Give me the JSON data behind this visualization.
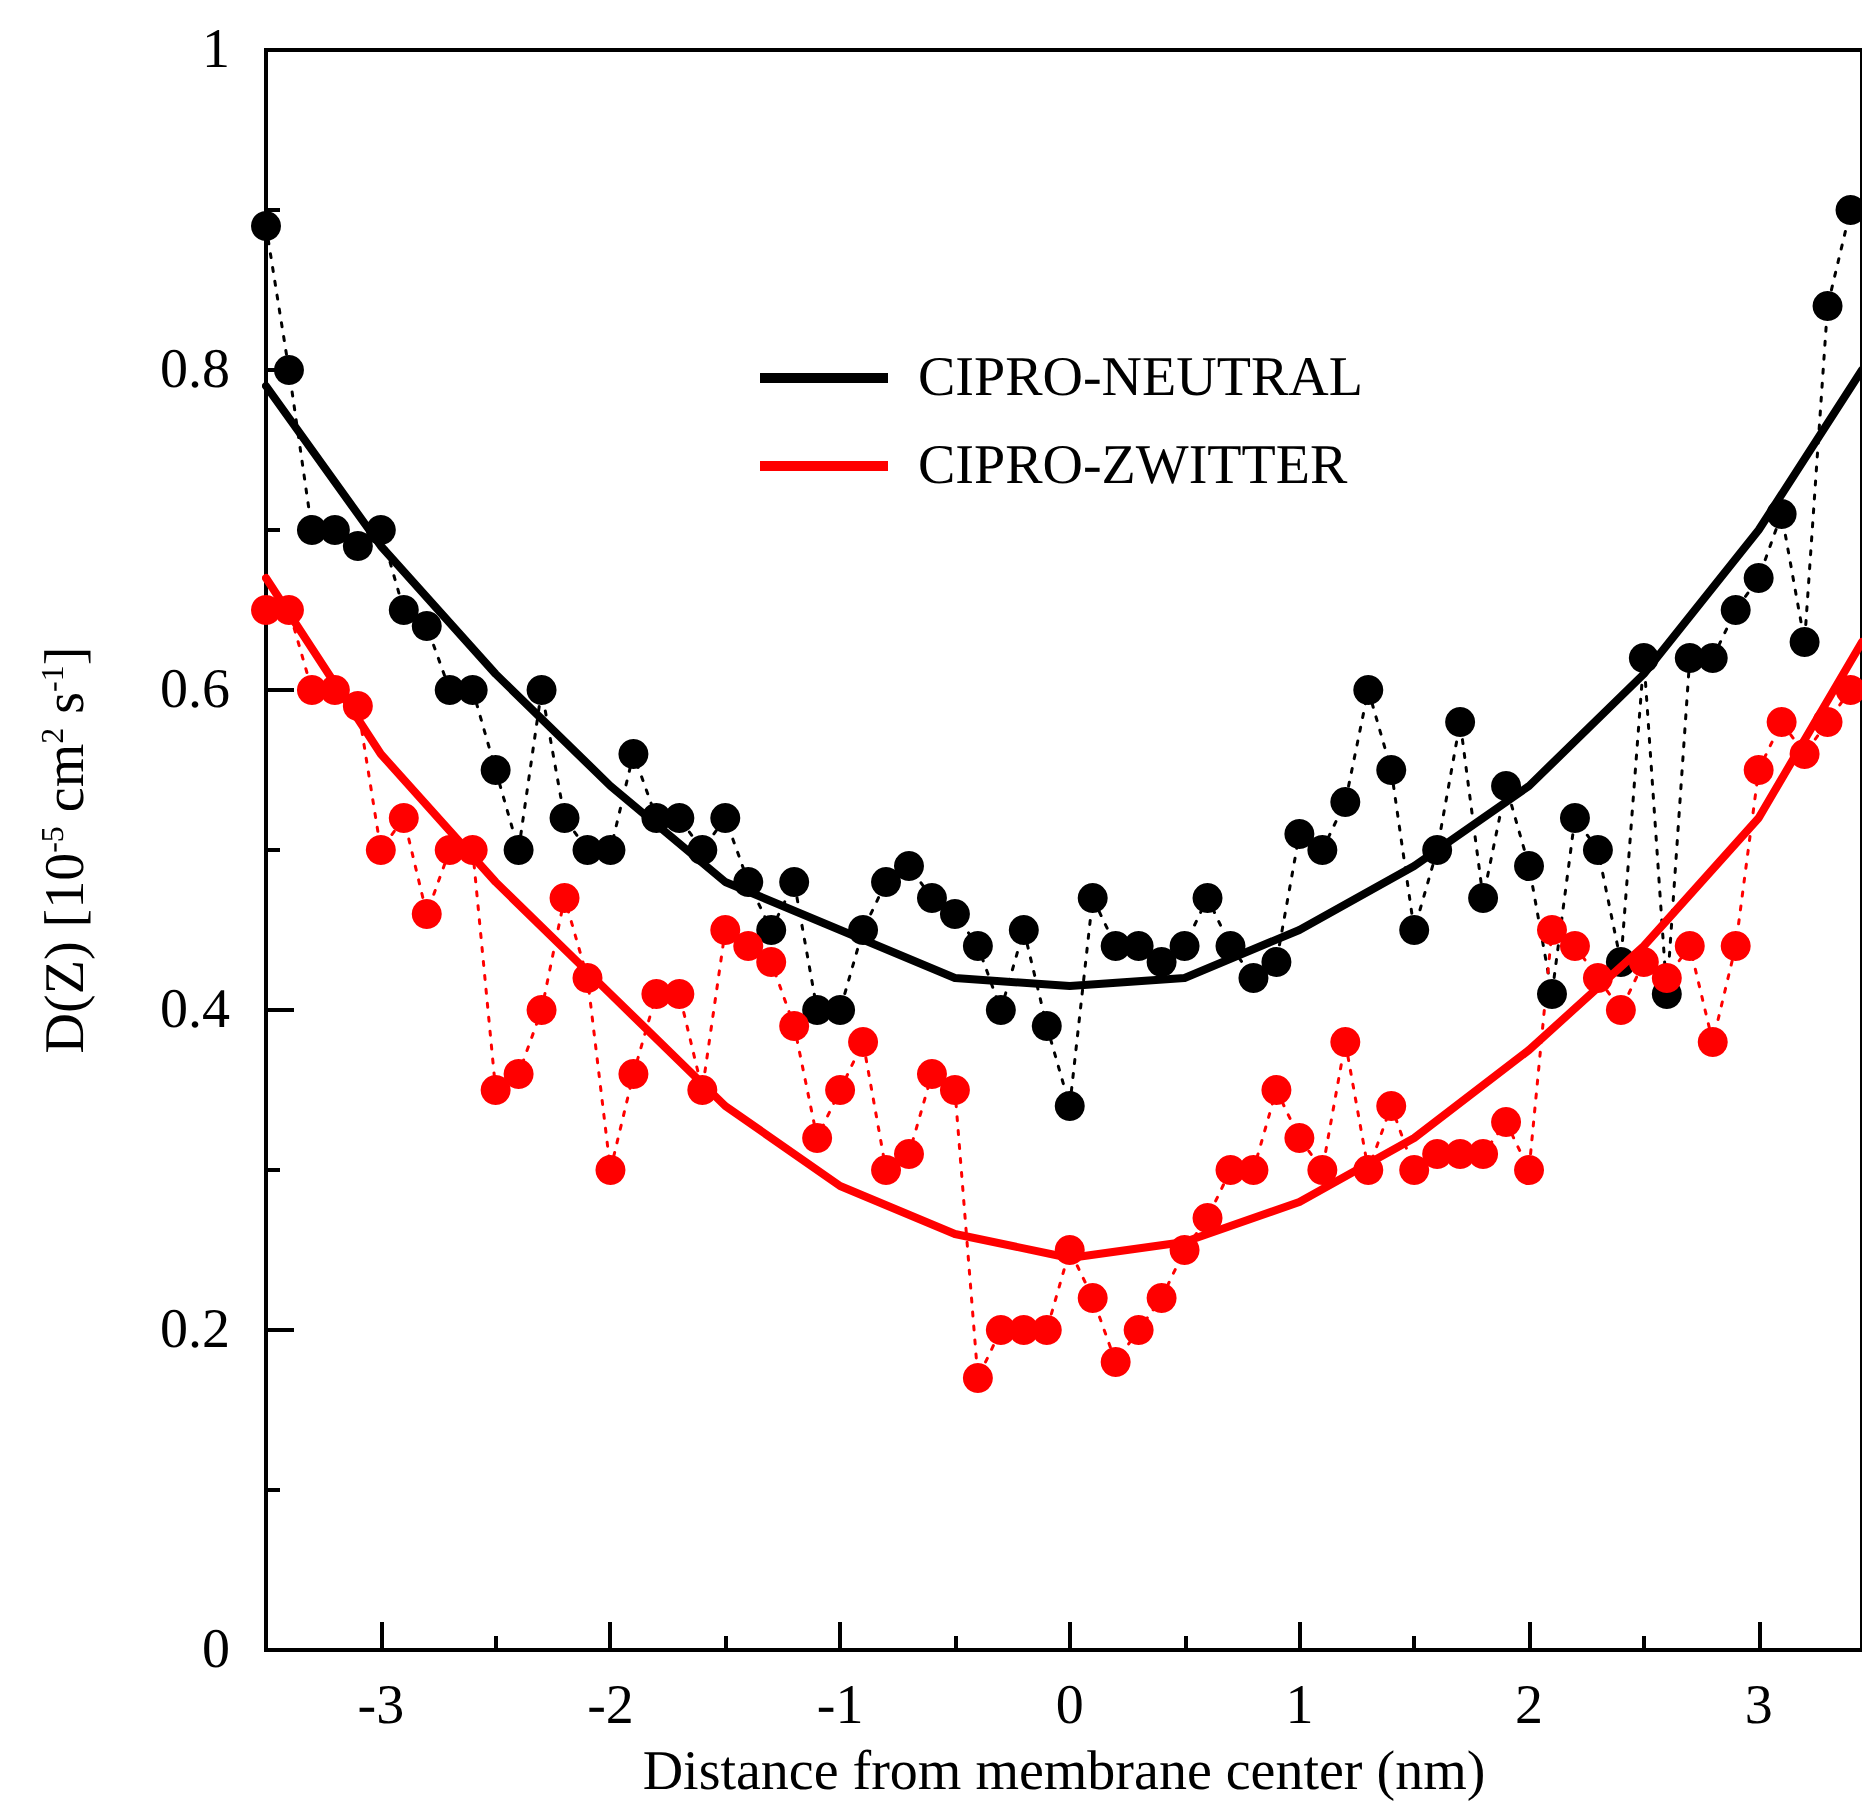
{
  "chart_data": {
    "type": "line",
    "xlabel": "Distance from membrane center (nm)",
    "ylabel": "D(Z) [10$^{-5}$ cm$^{2}$ s$^{-1}$]",
    "xlim": [
      -3.5,
      3.45
    ],
    "xticks": [
      -3,
      -2,
      -1,
      0,
      1,
      2,
      3
    ],
    "ylim": [
      0,
      1
    ],
    "yticks": [
      0,
      0.2,
      0.4,
      0.6,
      0.8,
      1
    ],
    "grid": false,
    "legend": "top",
    "series": [
      {
        "marker": "circle",
        "line_style": "dotted",
        "color": "#000000",
        "x": [
          -3.5,
          -3.4,
          -3.3,
          -3.2,
          -3.1,
          -3.0,
          -2.9,
          -2.8,
          -2.7,
          -2.6,
          -2.5,
          -2.4,
          -2.3,
          -2.2,
          -2.1,
          -2.0,
          -1.9,
          -1.8,
          -1.7,
          -1.6,
          -1.5,
          -1.4,
          -1.3,
          -1.2,
          -1.1,
          -1.0,
          -0.9,
          -0.8,
          -0.7,
          -0.6,
          -0.5,
          -0.4,
          -0.3,
          -0.2,
          -0.1,
          0.0,
          0.1,
          0.2,
          0.3,
          0.4,
          0.5,
          0.6,
          0.7,
          0.8,
          0.9,
          1.0,
          1.1,
          1.2,
          1.3,
          1.4,
          1.5,
          1.6,
          1.7,
          1.8,
          1.9,
          2.0,
          2.1,
          2.2,
          2.3,
          2.4,
          2.5,
          2.6,
          2.7,
          2.8,
          2.9,
          3.0,
          3.1,
          3.2,
          3.3,
          3.4
        ],
        "values": [
          0.89,
          0.8,
          0.7,
          0.7,
          0.69,
          0.7,
          0.65,
          0.64,
          0.6,
          0.6,
          0.55,
          0.5,
          0.6,
          0.52,
          0.5,
          0.5,
          0.56,
          0.52,
          0.52,
          0.5,
          0.52,
          0.48,
          0.45,
          0.48,
          0.4,
          0.4,
          0.45,
          0.48,
          0.49,
          0.47,
          0.46,
          0.44,
          0.4,
          0.45,
          0.39,
          0.34,
          0.47,
          0.44,
          0.44,
          0.43,
          0.44,
          0.47,
          0.44,
          0.42,
          0.43,
          0.51,
          0.5,
          0.53,
          0.6,
          0.55,
          0.45,
          0.5,
          0.58,
          0.47,
          0.54,
          0.49,
          0.41,
          0.52,
          0.5,
          0.43,
          0.62,
          0.41,
          0.62,
          0.62,
          0.65,
          0.67,
          0.71,
          0.63,
          0.84,
          0.9
        ]
      },
      {
        "marker": "circle",
        "line_style": "dotted",
        "color": "#ff0000",
        "x": [
          -3.5,
          -3.4,
          -3.3,
          -3.2,
          -3.1,
          -3.0,
          -2.9,
          -2.8,
          -2.7,
          -2.6,
          -2.5,
          -2.4,
          -2.3,
          -2.2,
          -2.1,
          -2.0,
          -1.9,
          -1.8,
          -1.7,
          -1.6,
          -1.5,
          -1.4,
          -1.3,
          -1.2,
          -1.1,
          -1.0,
          -0.9,
          -0.8,
          -0.7,
          -0.6,
          -0.5,
          -0.4,
          -0.3,
          -0.2,
          -0.1,
          0.0,
          0.1,
          0.2,
          0.3,
          0.4,
          0.5,
          0.6,
          0.7,
          0.8,
          0.9,
          1.0,
          1.1,
          1.2,
          1.3,
          1.4,
          1.5,
          1.6,
          1.7,
          1.8,
          1.9,
          2.0,
          2.1,
          2.2,
          2.3,
          2.4,
          2.5,
          2.6,
          2.7,
          2.8,
          2.9,
          3.0,
          3.1,
          3.2,
          3.3,
          3.4
        ],
        "values": [
          0.65,
          0.65,
          0.6,
          0.6,
          0.59,
          0.5,
          0.52,
          0.46,
          0.5,
          0.5,
          0.35,
          0.36,
          0.4,
          0.47,
          0.42,
          0.3,
          0.36,
          0.41,
          0.41,
          0.35,
          0.45,
          0.44,
          0.43,
          0.39,
          0.32,
          0.35,
          0.38,
          0.3,
          0.31,
          0.36,
          0.35,
          0.17,
          0.2,
          0.2,
          0.2,
          0.25,
          0.22,
          0.18,
          0.2,
          0.22,
          0.25,
          0.27,
          0.3,
          0.3,
          0.35,
          0.32,
          0.3,
          0.38,
          0.3,
          0.34,
          0.3,
          0.31,
          0.31,
          0.31,
          0.33,
          0.3,
          0.45,
          0.44,
          0.42,
          0.4,
          0.43,
          0.42,
          0.44,
          0.38,
          0.44,
          0.55,
          0.58,
          0.56,
          0.58,
          0.6
        ]
      },
      {
        "name": "CIPRO-NEUTRAL",
        "marker": "none",
        "line_style": "solid",
        "color": "#000000",
        "x": [
          -3.5,
          -3,
          -2.5,
          -2,
          -1.5,
          -1,
          -0.5,
          0,
          0.5,
          1,
          1.5,
          2,
          2.5,
          3,
          3.45
        ],
        "values": [
          0.79,
          0.69,
          0.61,
          0.54,
          0.48,
          0.45,
          0.42,
          0.415,
          0.42,
          0.45,
          0.49,
          0.54,
          0.61,
          0.7,
          0.8
        ]
      },
      {
        "name": "CIPRO-ZWITTER",
        "marker": "none",
        "line_style": "solid",
        "color": "#ff0000",
        "x": [
          -3.5,
          -3,
          -2.5,
          -2,
          -1.5,
          -1,
          -0.5,
          0,
          0.5,
          1,
          1.5,
          2,
          2.5,
          3,
          3.45
        ],
        "values": [
          0.67,
          0.56,
          0.48,
          0.41,
          0.34,
          0.29,
          0.26,
          0.245,
          0.255,
          0.28,
          0.32,
          0.375,
          0.44,
          0.52,
          0.63
        ]
      }
    ]
  }
}
